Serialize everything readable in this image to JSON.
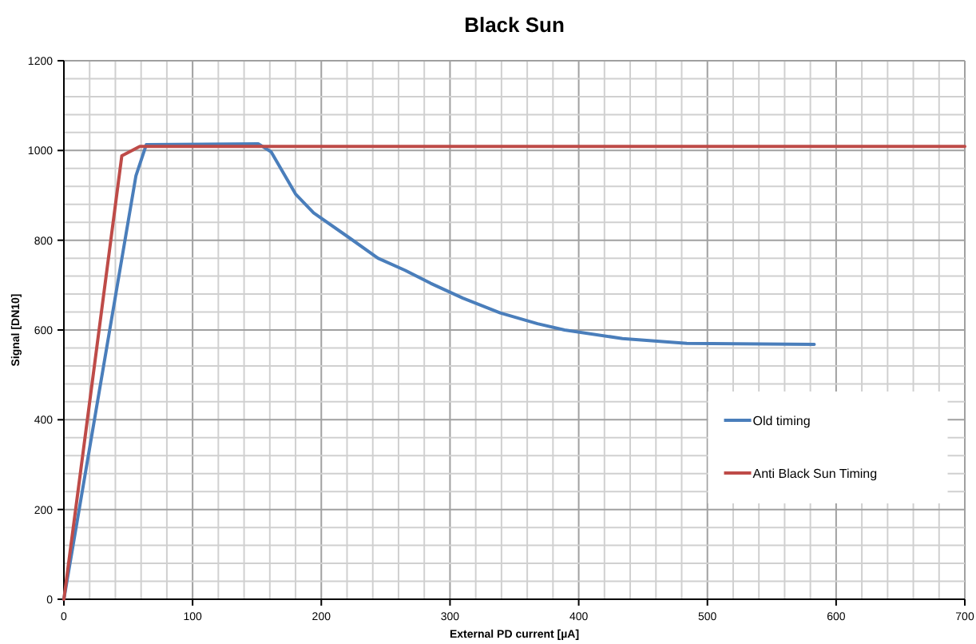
{
  "chart_data": {
    "type": "line",
    "title": "Black Sun",
    "xlabel": "External PD current [µA]",
    "ylabel": "Signal [DN10]",
    "xlim": [
      0,
      700
    ],
    "ylim": [
      0,
      1200
    ],
    "xticks": [
      0,
      {
        "value": 20,
        "label": null
      },
      {
        "value": 40,
        "label": null
      },
      {
        "value": 60,
        "label": null
      },
      {
        "value": 80,
        "label": null
      },
      100,
      {
        "value": 120,
        "label": null
      },
      {
        "value": 140,
        "label": null
      },
      {
        "value": 160,
        "label": null
      },
      {
        "value": 180,
        "label": null
      },
      200,
      {
        "value": 220,
        "label": null
      },
      {
        "value": 240,
        "label": null
      },
      {
        "value": 260,
        "label": null
      },
      {
        "value": 280,
        "label": null
      },
      300,
      {
        "value": 320,
        "label": null
      },
      {
        "value": 340,
        "label": null
      },
      {
        "value": 360,
        "label": null
      },
      {
        "value": 380,
        "label": null
      },
      400,
      {
        "value": 420,
        "label": null
      },
      {
        "value": 440,
        "label": null
      },
      {
        "value": 460,
        "label": null
      },
      {
        "value": 480,
        "label": null
      },
      500,
      {
        "value": 520,
        "label": null
      },
      {
        "value": 540,
        "label": null
      },
      {
        "value": 560,
        "label": null
      },
      {
        "value": 580,
        "label": null
      },
      600,
      {
        "value": 620,
        "label": null
      },
      {
        "value": 640,
        "label": null
      },
      {
        "value": 660,
        "label": null
      },
      {
        "value": 680,
        "label": null
      },
      700
    ],
    "yticks": [
      0,
      {
        "value": 40,
        "label": null
      },
      {
        "value": 80,
        "label": null
      },
      {
        "value": 120,
        "label": null
      },
      {
        "value": 160,
        "label": null
      },
      200,
      {
        "value": 240,
        "label": null
      },
      {
        "value": 280,
        "label": null
      },
      {
        "value": 320,
        "label": null
      },
      {
        "value": 360,
        "label": null
      },
      400,
      {
        "value": 440,
        "label": null
      },
      {
        "value": 480,
        "label": null
      },
      {
        "value": 520,
        "label": null
      },
      {
        "value": 560,
        "label": null
      },
      600,
      {
        "value": 640,
        "label": null
      },
      {
        "value": 680,
        "label": null
      },
      {
        "value": 720,
        "label": null
      },
      {
        "value": 760,
        "label": null
      },
      800,
      {
        "value": 840,
        "label": null
      },
      {
        "value": 880,
        "label": null
      },
      {
        "value": 920,
        "label": null
      },
      {
        "value": 960,
        "label": null
      },
      1000,
      {
        "value": 1040,
        "label": null
      },
      {
        "value": 1080,
        "label": null
      },
      {
        "value": 1120,
        "label": null
      },
      {
        "value": 1160,
        "label": null
      },
      1200
    ],
    "grid": true,
    "legend": "bottom right",
    "marker": "none",
    "line_style": "solid",
    "series": [
      {
        "name": "Old timing",
        "color": "#4a7ebb",
        "x": [
          0,
          56,
          64,
          151,
          161,
          180,
          194,
          221,
          244,
          265,
          285,
          310,
          339,
          368,
          389,
          434,
          484,
          583
        ],
        "values": [
          0,
          944,
          1013,
          1015,
          997,
          903,
          861,
          807,
          760,
          733,
          704,
          671,
          638,
          614,
          600,
          581,
          570,
          568
        ]
      },
      {
        "name": "Anti Black Sun Timing",
        "color": "#be4b48",
        "x": [
          0,
          45,
          59,
          700
        ],
        "values": [
          0,
          988,
          1009,
          1009
        ]
      }
    ]
  }
}
